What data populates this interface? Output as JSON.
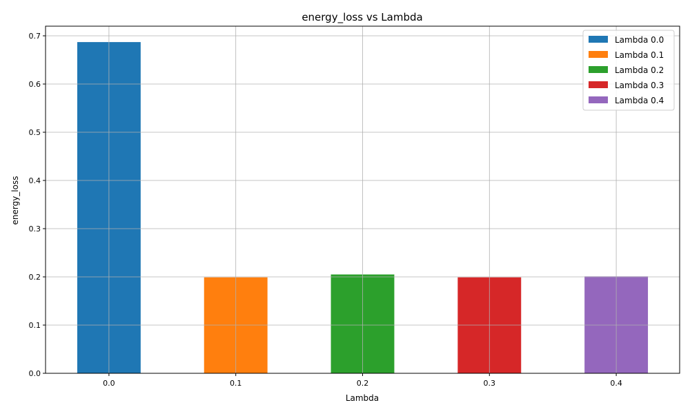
{
  "chart_data": {
    "type": "bar",
    "title": "energy_loss vs Lambda",
    "xlabel": "Lambda",
    "ylabel": "energy_loss",
    "categories": [
      "0.0",
      "0.1",
      "0.2",
      "0.3",
      "0.4"
    ],
    "values": [
      0.687,
      0.199,
      0.205,
      0.199,
      0.201
    ],
    "colors": [
      "#1f77b4",
      "#ff7f0e",
      "#2ca02c",
      "#d62728",
      "#9467bd"
    ],
    "yticks": [
      "0.0",
      "0.1",
      "0.2",
      "0.3",
      "0.4",
      "0.5",
      "0.6",
      "0.7"
    ],
    "ylim": [
      0,
      0.72
    ],
    "grid": true,
    "legend": {
      "position": "top-right",
      "entries": [
        "Lambda 0.0",
        "Lambda 0.1",
        "Lambda 0.2",
        "Lambda 0.3",
        "Lambda 0.4"
      ]
    }
  }
}
